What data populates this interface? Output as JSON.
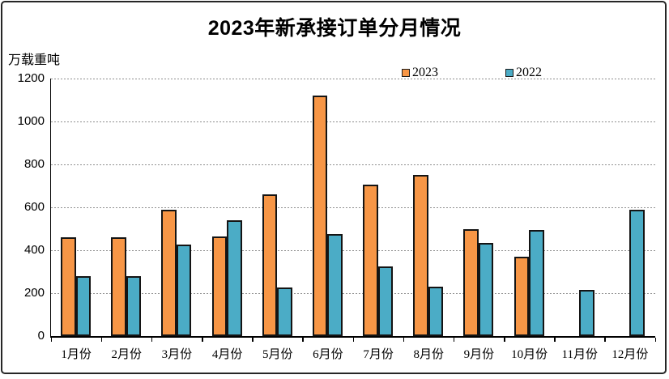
{
  "title": "2023年新承接订单分月情况",
  "unit_label": "万载重吨",
  "legend": {
    "item_2023": "2023",
    "item_2022": "2022"
  },
  "colors": {
    "series_2023": "#F79646",
    "series_2022": "#4BACC6",
    "bar_border": "#141414",
    "gridline": "#8f8f8f",
    "text": "#000000"
  },
  "chart_data": {
    "type": "bar",
    "title": "2023年新承接订单分月情况",
    "ylabel": "万载重吨",
    "categories": [
      "1月份",
      "2月份",
      "3月份",
      "4月份",
      "5月份",
      "6月份",
      "7月份",
      "8月份",
      "9月份",
      "10月份",
      "11月份",
      "12月份"
    ],
    "series": [
      {
        "name": "2023",
        "color": "#F79646",
        "values": [
          460,
          460,
          590,
          465,
          660,
          1120,
          705,
          750,
          500,
          370,
          null,
          null
        ]
      },
      {
        "name": "2022",
        "color": "#4BACC6",
        "values": [
          280,
          280,
          425,
          540,
          225,
          475,
          325,
          230,
          435,
          495,
          215,
          590
        ]
      }
    ],
    "ylim": [
      0,
      1200
    ],
    "yticks": [
      0,
      200,
      400,
      600,
      800,
      1000,
      1200
    ],
    "grid": "horizontal-dashed",
    "legend_position": "top-center"
  }
}
